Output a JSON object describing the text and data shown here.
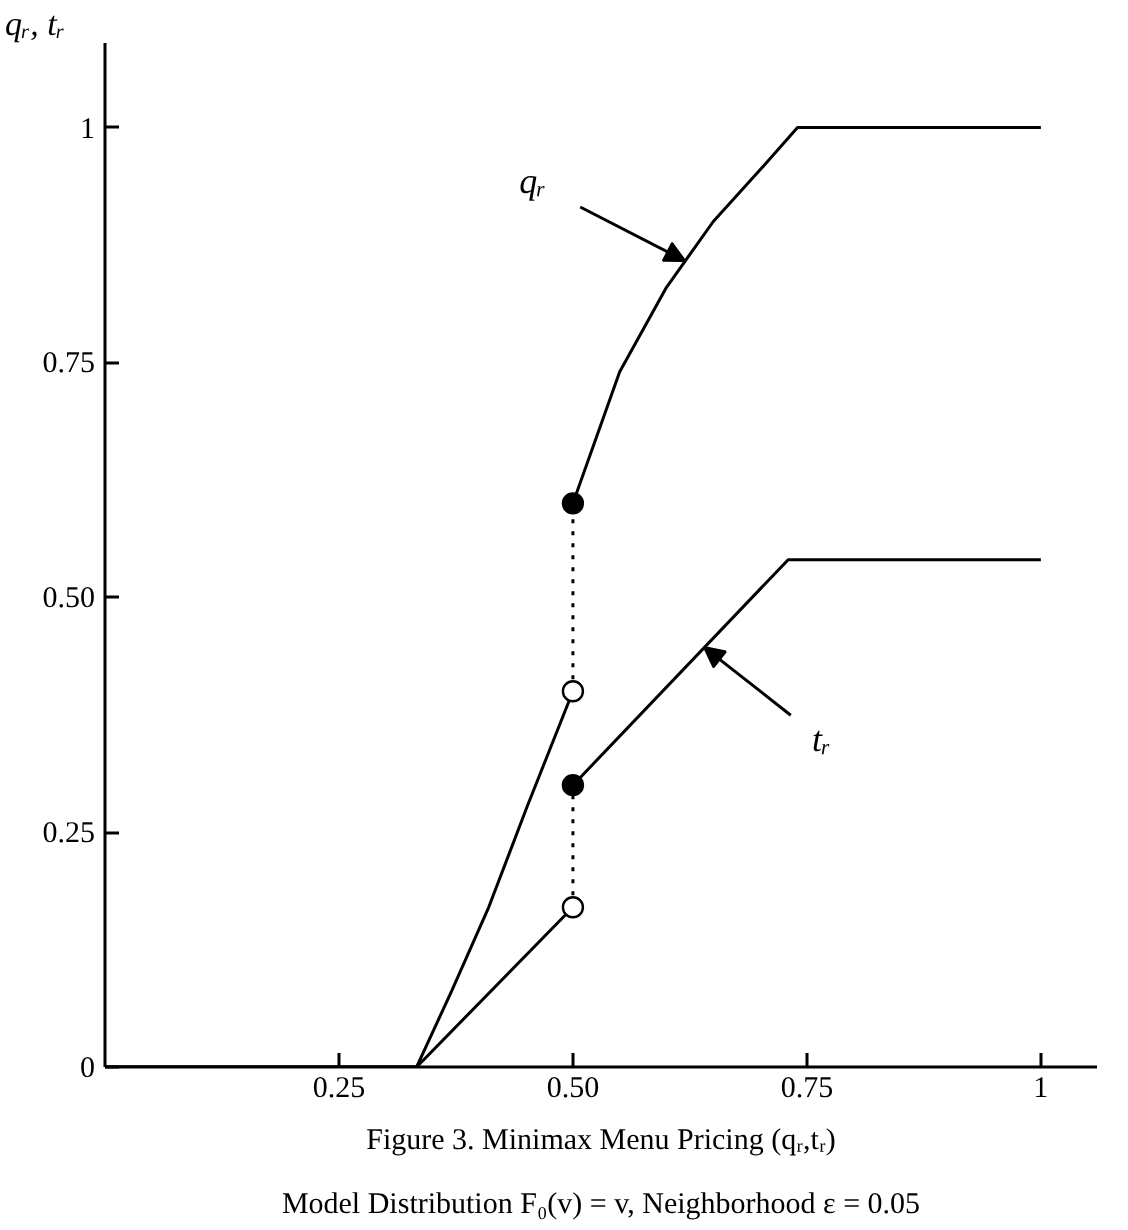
{
  "chart_data": {
    "type": "line",
    "title": "Figure 3. Minimax Menu Pricing (qᵣ,tᵣ)",
    "subtitle": "Model Distribution F₀(v) = v, Neighborhood ε = 0.05",
    "ylabel": "qᵣ, tᵣ",
    "xlim": [
      0,
      1.06
    ],
    "ylim": [
      0,
      1.09
    ],
    "xticks": [
      0.25,
      {
        "value": 0.5,
        "label": "0.50"
      },
      0.75,
      1
    ],
    "yticks": [
      0,
      0.25,
      {
        "value": 0.5,
        "label": "0.50"
      },
      0.75,
      1
    ],
    "grid": false,
    "series": [
      {
        "color": "#000000",
        "line_style": "solid",
        "x": [
          0,
          0.333,
          0.37,
          0.41,
          0.451,
          0.5
        ],
        "values": [
          0,
          0,
          0.08,
          0.17,
          0.277,
          0.4
        ]
      },
      {
        "color": "#000000",
        "line_style": "solid",
        "x": [
          0.5,
          0.55,
          0.6,
          0.65,
          0.7,
          0.74,
          1
        ],
        "values": [
          0.6,
          0.74,
          0.83,
          0.9,
          0.955,
          1,
          1
        ]
      },
      {
        "color": "#000000",
        "line_style": "solid",
        "x": [
          0,
          0.333,
          0.5
        ],
        "values": [
          0,
          0,
          0.17
        ]
      },
      {
        "color": "#000000",
        "line_style": "solid",
        "x": [
          0.5,
          0.73,
          1
        ],
        "values": [
          0.3,
          0.54,
          0.54
        ]
      },
      {
        "color": "#000000",
        "line_style": "dotted",
        "x": [
          0.5,
          0.5
        ],
        "values": [
          0.4,
          0.6
        ]
      },
      {
        "color": "#000000",
        "line_style": "dotted",
        "x": [
          0.5,
          0.5
        ],
        "values": [
          0.17,
          0.3
        ]
      },
      {
        "type": "scatter",
        "color": "#000000",
        "marker": "circle",
        "x": [
          0.5,
          0.5
        ],
        "values": [
          0.6,
          0.3
        ]
      },
      {
        "type": "scatter",
        "color": "#ffffff",
        "marker": "circle",
        "x": [
          0.5,
          0.5
        ],
        "values": [
          0.4,
          0.17
        ]
      }
    ],
    "annotations": [
      {
        "text": "qᵣ",
        "x": 0.62,
        "y": 0.858
      },
      {
        "text": "tᵣ",
        "x": 0.64,
        "y": 0.447
      }
    ]
  }
}
